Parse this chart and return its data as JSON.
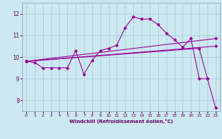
{
  "title": "",
  "xlabel": "Windchill (Refroidissement éolien,°C)",
  "bg_color": "#cce8f0",
  "grid_color": "#aaccdd",
  "line_color": "#990099",
  "xlim": [
    -0.5,
    23.5
  ],
  "ylim": [
    7.5,
    12.5
  ],
  "xticks": [
    0,
    1,
    2,
    3,
    4,
    5,
    6,
    7,
    8,
    9,
    10,
    11,
    12,
    13,
    14,
    15,
    16,
    17,
    18,
    19,
    20,
    21,
    22,
    23
  ],
  "yticks": [
    8,
    9,
    10,
    11,
    12
  ],
  "line1_x": [
    0,
    1,
    2,
    3,
    4,
    5,
    6,
    7,
    8,
    9,
    10,
    11,
    12,
    13,
    14,
    15,
    16,
    17,
    18,
    19,
    20,
    21,
    22
  ],
  "line1_y": [
    9.8,
    9.75,
    9.5,
    9.5,
    9.5,
    9.5,
    10.3,
    9.2,
    9.85,
    10.3,
    10.4,
    10.55,
    11.35,
    11.85,
    11.75,
    11.75,
    11.5,
    11.1,
    10.8,
    10.45,
    10.85,
    9.0,
    9.0
  ],
  "line2_x": [
    0,
    23
  ],
  "line2_y": [
    9.8,
    10.5
  ],
  "line3_x": [
    0,
    23
  ],
  "line3_y": [
    9.8,
    10.85
  ],
  "line4_x": [
    0,
    21,
    22,
    23
  ],
  "line4_y": [
    9.8,
    10.4,
    9.0,
    7.65
  ]
}
